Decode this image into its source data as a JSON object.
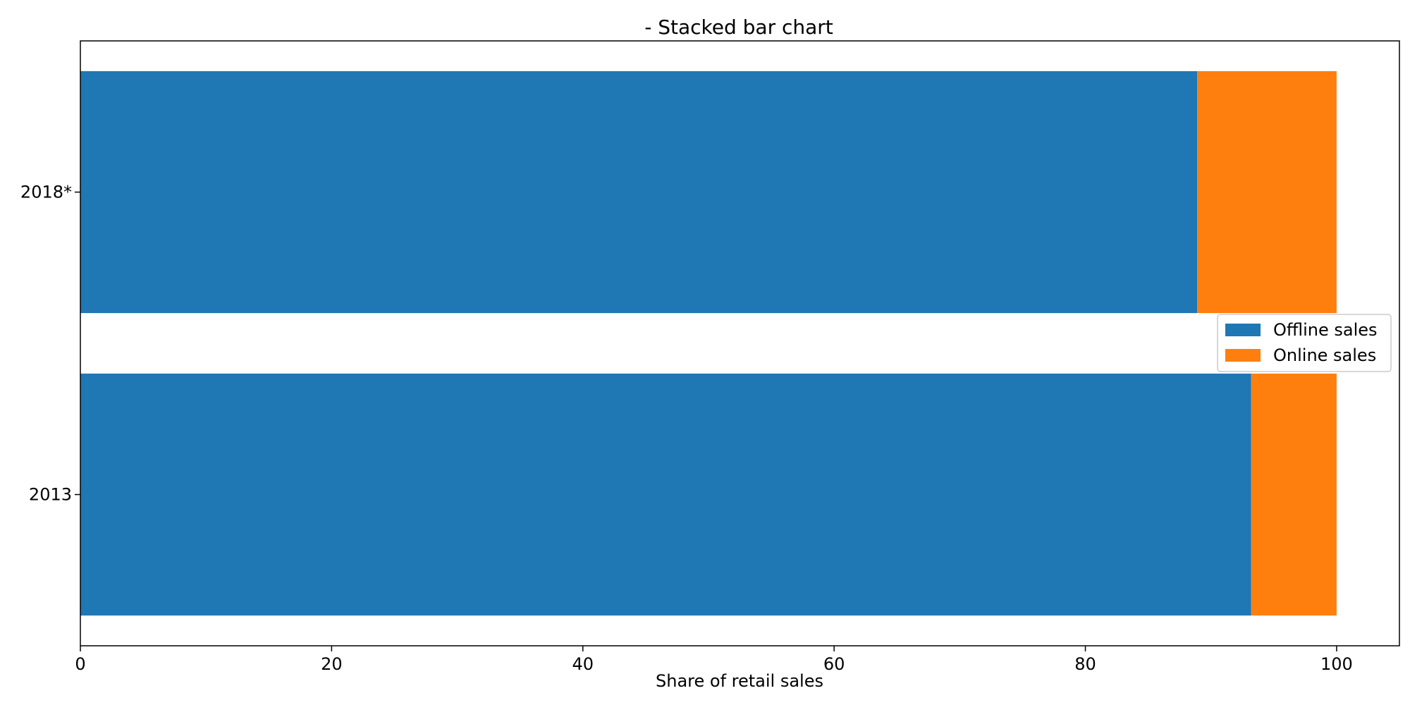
{
  "chart_data": {
    "type": "bar",
    "orientation": "horizontal",
    "stacked": true,
    "title": "- Stacked bar chart",
    "xlabel": "Share of retail sales",
    "ylabel": "",
    "xlim": [
      0,
      105
    ],
    "xticks": [
      0,
      20,
      40,
      60,
      80,
      100
    ],
    "categories": [
      "2013",
      "2018*"
    ],
    "series": [
      {
        "name": "Offline sales",
        "color": "#1f77b4",
        "values": [
          93.2,
          88.9
        ]
      },
      {
        "name": "Online sales",
        "color": "#ff7f0e",
        "values": [
          6.8,
          11.1
        ]
      }
    ],
    "grid": false,
    "legend": "center-right"
  }
}
